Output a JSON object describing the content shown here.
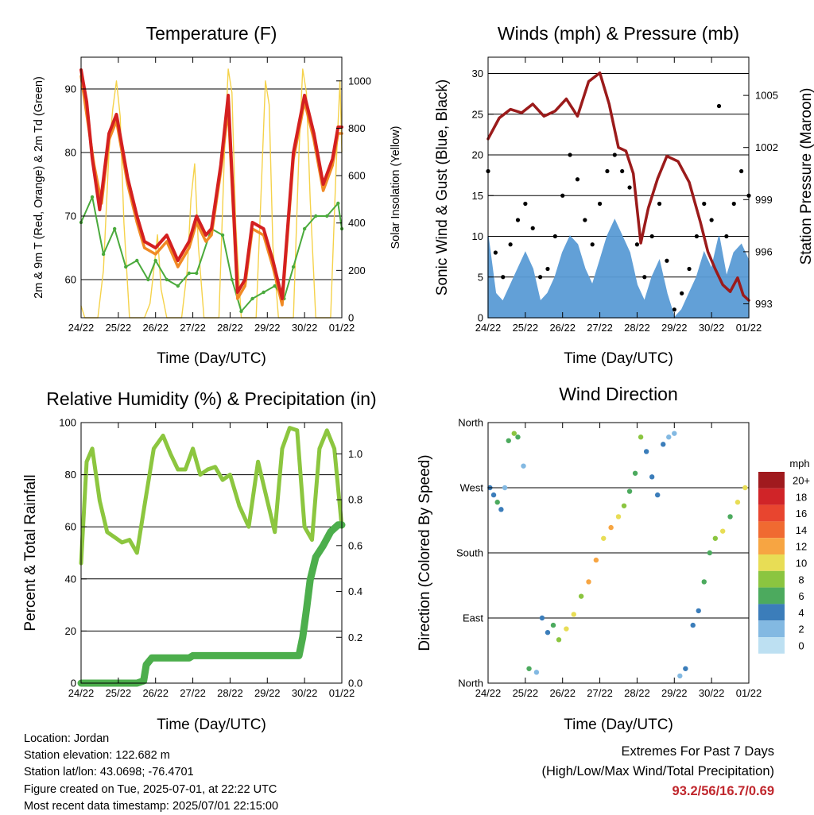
{
  "panels": {
    "temperature": {
      "title": "Temperature (F)",
      "ylabel_left": "2m & 9m T (Red, Orange) & 2m Td (Green)",
      "ylabel_right": "Solar Insolation (Yellow)",
      "xlabel": "Time (Day/UTC)"
    },
    "winds": {
      "title": "Winds (mph) & Pressure (mb)",
      "ylabel_left": "Sonic Wind & Gust (Blue, Black)",
      "ylabel_right": "Station Pressure (Maroon)",
      "xlabel": "Time (Day/UTC)"
    },
    "humidity": {
      "title": "Relative Humidity (%) & Precipitation (in)",
      "ylabel_left": "Percent & Total Rainfall",
      "xlabel": "Time (Day/UTC)"
    },
    "direction": {
      "title": "Wind Direction",
      "ylabel_left": "Direction (Colored By Speed)",
      "xlabel": "Time (Day/UTC)",
      "colorbar_title": "mph"
    }
  },
  "info": {
    "location": "Location: Jordan",
    "elevation": "Station elevation: 122.682 m",
    "latlon": "Station lat/lon: 43.0698; -76.4701",
    "created": "Figure created on Tue, 2025-07-01, at 22:22 UTC",
    "recent": "Most recent data timestamp: 2025/07/01 22:15:00"
  },
  "extremes": {
    "line1": "Extremes For Past 7 Days",
    "line2": "(High/Low/Max Wind/Total Precipitation)",
    "values": "93.2/56/16.7/0.69"
  },
  "colors": {
    "temp_2m": "#d42020",
    "temp_9m": "#f08a24",
    "dewpoint": "#4aaa3c",
    "solar": "#f5d24a",
    "wind": "#5a9bd5",
    "gust": "#000000",
    "pressure": "#9b1b1b",
    "rh": "#8cc63f",
    "precip": "#4cae4c"
  },
  "chart_data": [
    {
      "id": "temperature",
      "type": "line",
      "title": "Temperature (F)",
      "xlabel": "Time (Day/UTC)",
      "ylabel": "2m & 9m T (Red, Orange) & 2m Td (Green)",
      "ylabel_right": "Solar Insolation (Yellow)",
      "x_ticks": [
        "24/22",
        "25/22",
        "26/22",
        "27/22",
        "28/22",
        "29/22",
        "30/22",
        "01/22"
      ],
      "xlim": [
        0,
        7
      ],
      "ylim": [
        54,
        95
      ],
      "y_ticks": [
        60,
        70,
        80,
        90
      ],
      "ylim_right": [
        0,
        1100
      ],
      "y_ticks_right": [
        0,
        200,
        400,
        600,
        800,
        1000
      ],
      "series": [
        {
          "name": "2m T",
          "axis": "left",
          "x": [
            0,
            0.15,
            0.3,
            0.5,
            0.75,
            0.95,
            1.25,
            1.5,
            1.7,
            2.0,
            2.3,
            2.6,
            2.9,
            3.1,
            3.35,
            3.5,
            3.75,
            3.95,
            4.2,
            4.4,
            4.6,
            4.9,
            5.15,
            5.4,
            5.7,
            6.0,
            6.25,
            6.5,
            6.75,
            6.9,
            7.0
          ],
          "y": [
            93,
            88,
            79,
            71,
            83,
            86,
            76,
            70,
            66,
            65,
            67,
            63,
            66,
            70,
            67,
            68,
            78,
            89,
            58,
            60,
            69,
            68,
            63,
            57,
            80,
            89,
            83,
            75,
            79,
            84,
            84
          ]
        },
        {
          "name": "9m T",
          "axis": "left",
          "x": [
            0,
            0.15,
            0.35,
            0.55,
            0.75,
            0.95,
            1.25,
            1.5,
            1.7,
            2.0,
            2.3,
            2.6,
            2.9,
            3.1,
            3.35,
            3.5,
            3.75,
            3.95,
            4.2,
            4.4,
            4.6,
            4.9,
            5.15,
            5.4,
            5.7,
            6.0,
            6.25,
            6.5,
            6.75,
            6.9,
            7.0
          ],
          "y": [
            92,
            86,
            78,
            72,
            82,
            85,
            75,
            69,
            65,
            64,
            66,
            62,
            65,
            69,
            66,
            67,
            77,
            87,
            57,
            59,
            68,
            67,
            62,
            56,
            79,
            88,
            82,
            74,
            78,
            83,
            83
          ]
        },
        {
          "name": "2m Td",
          "axis": "left",
          "x": [
            0,
            0.3,
            0.6,
            0.9,
            1.2,
            1.5,
            1.8,
            2.0,
            2.3,
            2.6,
            2.9,
            3.1,
            3.5,
            3.8,
            4.05,
            4.3,
            4.6,
            4.9,
            5.2,
            5.45,
            5.7,
            6.0,
            6.3,
            6.6,
            6.9,
            7.0
          ],
          "y": [
            69,
            73,
            64,
            68,
            62,
            63,
            60,
            63,
            60,
            59,
            61,
            61,
            68,
            67,
            60,
            55,
            57,
            58,
            59,
            57,
            62,
            68,
            70,
            70,
            72,
            68
          ]
        },
        {
          "name": "Solar Insolation",
          "axis": "right",
          "x": [
            0,
            0.1,
            0.3,
            0.45,
            0.6,
            0.75,
            0.85,
            0.95,
            1.05,
            1.15,
            1.3,
            1.5,
            1.7,
            1.85,
            1.95,
            2.05,
            2.15,
            2.3,
            2.5,
            2.7,
            2.85,
            2.95,
            3.05,
            3.15,
            3.3,
            3.5,
            3.7,
            3.85,
            3.95,
            4.05,
            4.15,
            4.3,
            4.5,
            4.7,
            4.85,
            4.95,
            5.05,
            5.15,
            5.3,
            5.5,
            5.7,
            5.85,
            5.95,
            6.05,
            6.15,
            6.3,
            6.5,
            6.7,
            6.85,
            6.95,
            7.0
          ],
          "y": [
            50,
            0,
            0,
            0,
            200,
            700,
            880,
            1000,
            850,
            400,
            0,
            0,
            0,
            60,
            200,
            350,
            120,
            0,
            0,
            0,
            200,
            500,
            650,
            300,
            0,
            0,
            0,
            700,
            1050,
            950,
            400,
            0,
            0,
            0,
            600,
            1000,
            900,
            300,
            0,
            0,
            0,
            700,
            1050,
            950,
            500,
            0,
            0,
            0,
            650,
            1000,
            700
          ]
        }
      ]
    },
    {
      "id": "winds",
      "type": "line",
      "title": "Winds (mph) & Pressure (mb)",
      "xlabel": "Time (Day/UTC)",
      "ylabel": "Sonic Wind & Gust (Blue, Black)",
      "ylabel_right": "Station Pressure (Maroon)",
      "x_ticks": [
        "24/22",
        "25/22",
        "26/22",
        "27/22",
        "28/22",
        "29/22",
        "30/22",
        "01/22"
      ],
      "xlim": [
        0,
        7
      ],
      "ylim": [
        0,
        32
      ],
      "y_ticks": [
        0,
        5,
        10,
        15,
        20,
        25,
        30
      ],
      "ylim_right": [
        992.2,
        1007.2
      ],
      "y_ticks_right": [
        993,
        996,
        999,
        1002,
        1005
      ],
      "series": [
        {
          "name": "Sonic Wind",
          "axis": "left",
          "x": [
            0,
            0.2,
            0.4,
            0.6,
            0.8,
            1.0,
            1.2,
            1.4,
            1.6,
            1.8,
            2.0,
            2.2,
            2.4,
            2.6,
            2.8,
            3.0,
            3.2,
            3.4,
            3.6,
            3.8,
            4.0,
            4.2,
            4.4,
            4.6,
            4.8,
            5.0,
            5.2,
            5.4,
            5.6,
            5.8,
            6.0,
            6.2,
            6.4,
            6.6,
            6.8,
            7.0
          ],
          "y": [
            10,
            3,
            2,
            4,
            6,
            8,
            6,
            2,
            3,
            5,
            8,
            10,
            9,
            6,
            4,
            7,
            10,
            12,
            10,
            8,
            4,
            2,
            5,
            7,
            3,
            0,
            1,
            3,
            5,
            8,
            6,
            10,
            5,
            8,
            9,
            7
          ]
        },
        {
          "name": "Gust",
          "axis": "left",
          "x": [
            0,
            0.2,
            0.4,
            0.6,
            0.8,
            1.0,
            1.2,
            1.4,
            1.6,
            1.8,
            2.0,
            2.2,
            2.4,
            2.6,
            2.8,
            3.0,
            3.2,
            3.4,
            3.6,
            3.8,
            4.0,
            4.2,
            4.4,
            4.6,
            4.8,
            5.0,
            5.2,
            5.4,
            5.6,
            5.8,
            6.0,
            6.2,
            6.4,
            6.6,
            6.8,
            7.0
          ],
          "y": [
            18,
            8,
            5,
            9,
            12,
            14,
            11,
            5,
            6,
            10,
            15,
            20,
            17,
            12,
            9,
            14,
            18,
            20,
            18,
            16,
            9,
            5,
            10,
            14,
            7,
            1,
            3,
            6,
            10,
            14,
            12,
            26,
            10,
            14,
            18,
            15
          ]
        },
        {
          "name": "Station Pressure",
          "axis": "right",
          "x": [
            0,
            0.3,
            0.6,
            0.9,
            1.2,
            1.5,
            1.8,
            2.1,
            2.4,
            2.7,
            3.0,
            3.25,
            3.5,
            3.7,
            3.9,
            4.1,
            4.3,
            4.55,
            4.8,
            5.1,
            5.4,
            5.7,
            5.9,
            6.1,
            6.3,
            6.5,
            6.7,
            6.85,
            7.0
          ],
          "y": [
            1002.5,
            1003.7,
            1004.2,
            1004.0,
            1004.5,
            1003.8,
            1004.1,
            1004.8,
            1003.8,
            1005.8,
            1006.3,
            1004.5,
            1002.0,
            1001.8,
            1000.5,
            996.5,
            998.5,
            1000.2,
            1001.5,
            1001.2,
            1000.0,
            997.7,
            996.0,
            995.0,
            994.1,
            993.7,
            994.5,
            993.5,
            993.2
          ]
        }
      ]
    },
    {
      "id": "humidity",
      "type": "line",
      "title": "Relative Humidity (%) & Precipitation (in)",
      "xlabel": "Time (Day/UTC)",
      "ylabel": "Percent & Total Rainfall",
      "x_ticks": [
        "24/22",
        "25/22",
        "26/22",
        "27/22",
        "28/22",
        "29/22",
        "30/22",
        "01/22"
      ],
      "xlim": [
        0,
        7
      ],
      "ylim": [
        0,
        100
      ],
      "y_ticks": [
        0,
        20,
        40,
        60,
        80,
        100
      ],
      "ylim_right": [
        0,
        1.1364
      ],
      "y_ticks_right": [
        0.0,
        0.2,
        0.4,
        0.6,
        0.8,
        1.0
      ],
      "series": [
        {
          "name": "Relative Humidity",
          "axis": "left",
          "x": [
            0,
            0.15,
            0.3,
            0.5,
            0.7,
            0.9,
            1.1,
            1.3,
            1.5,
            1.7,
            1.95,
            2.2,
            2.4,
            2.6,
            2.8,
            3.0,
            3.2,
            3.4,
            3.6,
            3.8,
            4.0,
            4.25,
            4.5,
            4.75,
            5.0,
            5.2,
            5.4,
            5.6,
            5.8,
            6.0,
            6.2,
            6.4,
            6.6,
            6.8,
            7.0
          ],
          "y": [
            46,
            85,
            90,
            70,
            58,
            56,
            54,
            55,
            50,
            68,
            90,
            95,
            88,
            82,
            82,
            90,
            80,
            82,
            83,
            78,
            80,
            68,
            60,
            85,
            70,
            58,
            90,
            98,
            97,
            60,
            55,
            90,
            97,
            90,
            60
          ]
        },
        {
          "name": "Total Rainfall",
          "axis": "right",
          "x": [
            0,
            0.5,
            1.0,
            1.5,
            1.68,
            1.75,
            1.9,
            2.5,
            2.9,
            3.0,
            3.5,
            4.0,
            4.5,
            5.0,
            5.5,
            5.85,
            5.95,
            6.05,
            6.15,
            6.3,
            6.5,
            6.7,
            6.9,
            7.0
          ],
          "y": [
            0,
            0,
            0,
            0,
            0.01,
            0.08,
            0.11,
            0.11,
            0.11,
            0.12,
            0.12,
            0.12,
            0.12,
            0.12,
            0.12,
            0.12,
            0.2,
            0.32,
            0.45,
            0.55,
            0.6,
            0.66,
            0.69,
            0.69
          ]
        }
      ]
    },
    {
      "id": "direction",
      "type": "scatter",
      "title": "Wind Direction",
      "xlabel": "Time (Day/UTC)",
      "ylabel": "Direction (Colored By Speed)",
      "x_ticks": [
        "24/22",
        "25/22",
        "26/22",
        "27/22",
        "28/22",
        "29/22",
        "30/22",
        "01/22"
      ],
      "xlim": [
        0,
        7
      ],
      "ylim": [
        0,
        360
      ],
      "y_ticks": [
        0,
        90,
        180,
        270,
        360
      ],
      "y_tick_labels": [
        "North",
        "East",
        "South",
        "West",
        "North"
      ],
      "colorbar": {
        "title": "mph",
        "labels": [
          "20+",
          "18",
          "16",
          "14",
          "12",
          "10",
          "8",
          "6",
          "4",
          "2",
          "0"
        ],
        "colors": [
          "#a01a1e",
          "#d02428",
          "#e8452f",
          "#f06a31",
          "#f7a542",
          "#e8dd55",
          "#8bc540",
          "#4caa5e",
          "#3b7dba",
          "#83b9e2",
          "#bde0f2"
        ]
      },
      "series": [
        {
          "name": "Direction",
          "x": [
            0.05,
            0.15,
            0.25,
            0.35,
            0.45,
            0.55,
            0.7,
            0.8,
            0.95,
            1.1,
            1.3,
            1.45,
            1.6,
            1.75,
            1.9,
            2.1,
            2.3,
            2.5,
            2.7,
            2.9,
            3.1,
            3.3,
            3.5,
            3.65,
            3.8,
            3.95,
            4.1,
            4.25,
            4.4,
            4.55,
            4.7,
            4.85,
            5.0,
            5.15,
            5.3,
            5.5,
            5.65,
            5.8,
            5.95,
            6.1,
            6.3,
            6.5,
            6.7,
            6.9
          ],
          "y": [
            270,
            260,
            250,
            240,
            270,
            335,
            345,
            340,
            300,
            20,
            15,
            90,
            70,
            80,
            60,
            75,
            95,
            120,
            140,
            170,
            200,
            215,
            230,
            245,
            265,
            290,
            340,
            320,
            285,
            260,
            330,
            340,
            345,
            10,
            20,
            80,
            100,
            140,
            180,
            200,
            210,
            230,
            250,
            270
          ],
          "speed": [
            4,
            3,
            5,
            3,
            2,
            6,
            7,
            5,
            2,
            6,
            2,
            3,
            4,
            5,
            8,
            10,
            9,
            8,
            11,
            12,
            10,
            11,
            9,
            8,
            6,
            5,
            7,
            4,
            3,
            4,
            3,
            2,
            1,
            2,
            4,
            3,
            4,
            5,
            6,
            8,
            9,
            6,
            10,
            9
          ]
        }
      ]
    }
  ]
}
